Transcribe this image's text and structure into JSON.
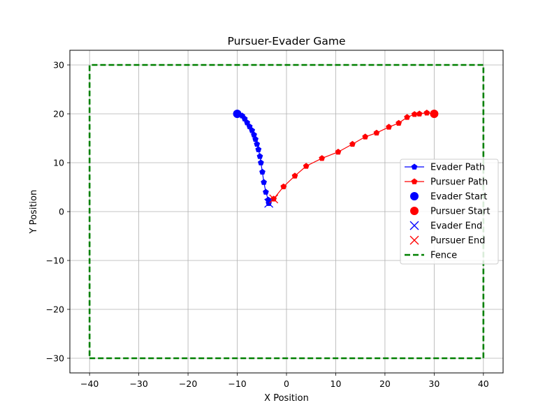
{
  "chart_data": {
    "type": "line",
    "title": "Pursuer-Evader Game",
    "xlabel": "X Position",
    "ylabel": "Y Position",
    "xlim": [
      -44,
      44
    ],
    "ylim": [
      -33,
      33
    ],
    "xticks": [
      -40,
      -30,
      -20,
      -10,
      0,
      10,
      20,
      30,
      40
    ],
    "yticks": [
      -30,
      -20,
      -10,
      0,
      10,
      20,
      30
    ],
    "grid": true,
    "legend_position": "center-right",
    "series": [
      {
        "name": "Evader Path",
        "type": "line",
        "color": "#0000ff",
        "marker": "pentagon",
        "points": [
          [
            -10,
            20
          ],
          [
            -9,
            19.6
          ],
          [
            -8.5,
            19
          ],
          [
            -8,
            18.2
          ],
          [
            -7.5,
            17.4
          ],
          [
            -7,
            16.6
          ],
          [
            -6.6,
            15.7
          ],
          [
            -6.3,
            14.8
          ],
          [
            -6,
            13.8
          ],
          [
            -5.7,
            12.7
          ],
          [
            -5.4,
            11.3
          ],
          [
            -5.2,
            10
          ],
          [
            -4.9,
            8.1
          ],
          [
            -4.6,
            6
          ],
          [
            -4.2,
            4
          ],
          [
            -3.7,
            2.4
          ],
          [
            -3.6,
            1.7
          ]
        ]
      },
      {
        "name": "Pursuer Path",
        "type": "line",
        "color": "#ff0000",
        "marker": "pentagon",
        "points": [
          [
            30,
            20
          ],
          [
            28.5,
            20.2
          ],
          [
            27,
            20
          ],
          [
            26,
            19.9
          ],
          [
            24.5,
            19.3
          ],
          [
            22.8,
            18.1
          ],
          [
            20.8,
            17.3
          ],
          [
            18.3,
            16.1
          ],
          [
            16,
            15.3
          ],
          [
            13.4,
            13.8
          ],
          [
            10.5,
            12.2
          ],
          [
            7.2,
            10.9
          ],
          [
            4,
            9.3
          ],
          [
            1.7,
            7.3
          ],
          [
            -0.6,
            5.1
          ],
          [
            -2.6,
            2.6
          ]
        ]
      },
      {
        "name": "Evader Start",
        "type": "point",
        "color": "#0000ff",
        "marker": "circle",
        "points": [
          [
            -10,
            20
          ]
        ]
      },
      {
        "name": "Pursuer Start",
        "type": "point",
        "color": "#ff0000",
        "marker": "circle",
        "points": [
          [
            30,
            20
          ]
        ]
      },
      {
        "name": "Evader End",
        "type": "point",
        "color": "#0000ff",
        "marker": "x",
        "points": [
          [
            -3.6,
            1.7
          ]
        ]
      },
      {
        "name": "Pursuer End",
        "type": "point",
        "color": "#ff0000",
        "marker": "x",
        "points": [
          [
            -2.6,
            2.6
          ]
        ]
      },
      {
        "name": "Fence",
        "type": "dashed-line",
        "color": "#008000",
        "points": [
          [
            -40,
            -30
          ],
          [
            40,
            -30
          ],
          [
            40,
            30
          ],
          [
            -40,
            30
          ],
          [
            -40,
            -30
          ]
        ]
      }
    ]
  }
}
